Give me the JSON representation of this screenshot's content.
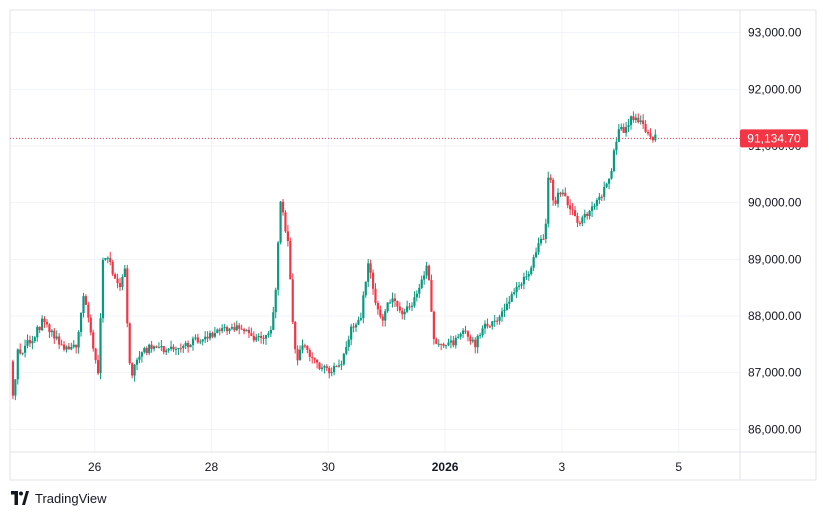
{
  "brand": {
    "name": "TradingView",
    "icon": "tradingview-logo-icon"
  },
  "chart_data": {
    "type": "candlestick",
    "price_unit_decimals": 2,
    "y_axis": {
      "ticks": [
        "86,000.00",
        "87,000.00",
        "88,000.00",
        "89,000.00",
        "90,000.00",
        "91,000.00",
        "92,000.00",
        "93,000.00"
      ],
      "tick_values": [
        86000,
        87000,
        88000,
        89000,
        90000,
        91000,
        92000,
        93000
      ],
      "range": [
        85600,
        93400
      ]
    },
    "x_axis": {
      "ticks": [
        "26",
        "28",
        "30",
        "2026",
        "3",
        "5"
      ],
      "tick_days": [
        26,
        28,
        30,
        32,
        34,
        36
      ],
      "bold_ticks": [
        "2026"
      ],
      "range_days": [
        24.55,
        37.05
      ],
      "period": "2025-12-24 to 2026-01-05"
    },
    "last_price": {
      "label": "91,134.70",
      "value": 91134.7,
      "color": "#f23645"
    },
    "colors": {
      "up": "#089981",
      "down": "#f23645",
      "grid": "#f0f3fa",
      "axis_text": "#131722"
    },
    "price_path": [
      [
        24.6,
        87200
      ],
      [
        24.65,
        86450
      ],
      [
        24.72,
        87350
      ],
      [
        24.8,
        87400
      ],
      [
        25.0,
        87650
      ],
      [
        25.15,
        87900
      ],
      [
        25.3,
        87700
      ],
      [
        25.45,
        87550
      ],
      [
        25.6,
        87350
      ],
      [
        25.75,
        87500
      ],
      [
        25.85,
        88400
      ],
      [
        25.95,
        87900
      ],
      [
        26.05,
        87200
      ],
      [
        26.1,
        86950
      ],
      [
        26.18,
        89000
      ],
      [
        26.28,
        89100
      ],
      [
        26.38,
        88650
      ],
      [
        26.48,
        88500
      ],
      [
        26.57,
        88950
      ],
      [
        26.62,
        87200
      ],
      [
        26.68,
        87000
      ],
      [
        26.8,
        87300
      ],
      [
        27.0,
        87450
      ],
      [
        27.3,
        87400
      ],
      [
        27.6,
        87500
      ],
      [
        28.0,
        87650
      ],
      [
        28.3,
        87800
      ],
      [
        28.6,
        87750
      ],
      [
        28.9,
        87550
      ],
      [
        29.05,
        87700
      ],
      [
        29.15,
        88500
      ],
      [
        29.22,
        90100
      ],
      [
        29.35,
        89300
      ],
      [
        29.45,
        87600
      ],
      [
        29.5,
        87200
      ],
      [
        29.62,
        87500
      ],
      [
        29.75,
        87250
      ],
      [
        29.9,
        87100
      ],
      [
        30.1,
        87050
      ],
      [
        30.25,
        87150
      ],
      [
        30.45,
        87800
      ],
      [
        30.6,
        88000
      ],
      [
        30.72,
        88950
      ],
      [
        30.85,
        88250
      ],
      [
        30.95,
        87900
      ],
      [
        31.1,
        88300
      ],
      [
        31.3,
        88050
      ],
      [
        31.5,
        88250
      ],
      [
        31.65,
        88650
      ],
      [
        31.75,
        88900
      ],
      [
        31.85,
        87600
      ],
      [
        31.95,
        87450
      ],
      [
        32.15,
        87500
      ],
      [
        32.35,
        87700
      ],
      [
        32.55,
        87500
      ],
      [
        32.7,
        87800
      ],
      [
        32.9,
        87900
      ],
      [
        33.1,
        88200
      ],
      [
        33.3,
        88500
      ],
      [
        33.5,
        88850
      ],
      [
        33.65,
        89300
      ],
      [
        33.75,
        89350
      ],
      [
        33.82,
        90600
      ],
      [
        33.9,
        89900
      ],
      [
        34.0,
        90200
      ],
      [
        34.1,
        90050
      ],
      [
        34.2,
        89900
      ],
      [
        34.3,
        89600
      ],
      [
        34.4,
        89700
      ],
      [
        34.55,
        89900
      ],
      [
        34.7,
        90100
      ],
      [
        34.8,
        90300
      ],
      [
        34.9,
        90650
      ],
      [
        35.0,
        91300
      ],
      [
        35.1,
        91250
      ],
      [
        35.2,
        91450
      ],
      [
        35.3,
        91500
      ],
      [
        35.4,
        91450
      ],
      [
        35.5,
        91200
      ],
      [
        35.6,
        91130
      ]
    ]
  }
}
